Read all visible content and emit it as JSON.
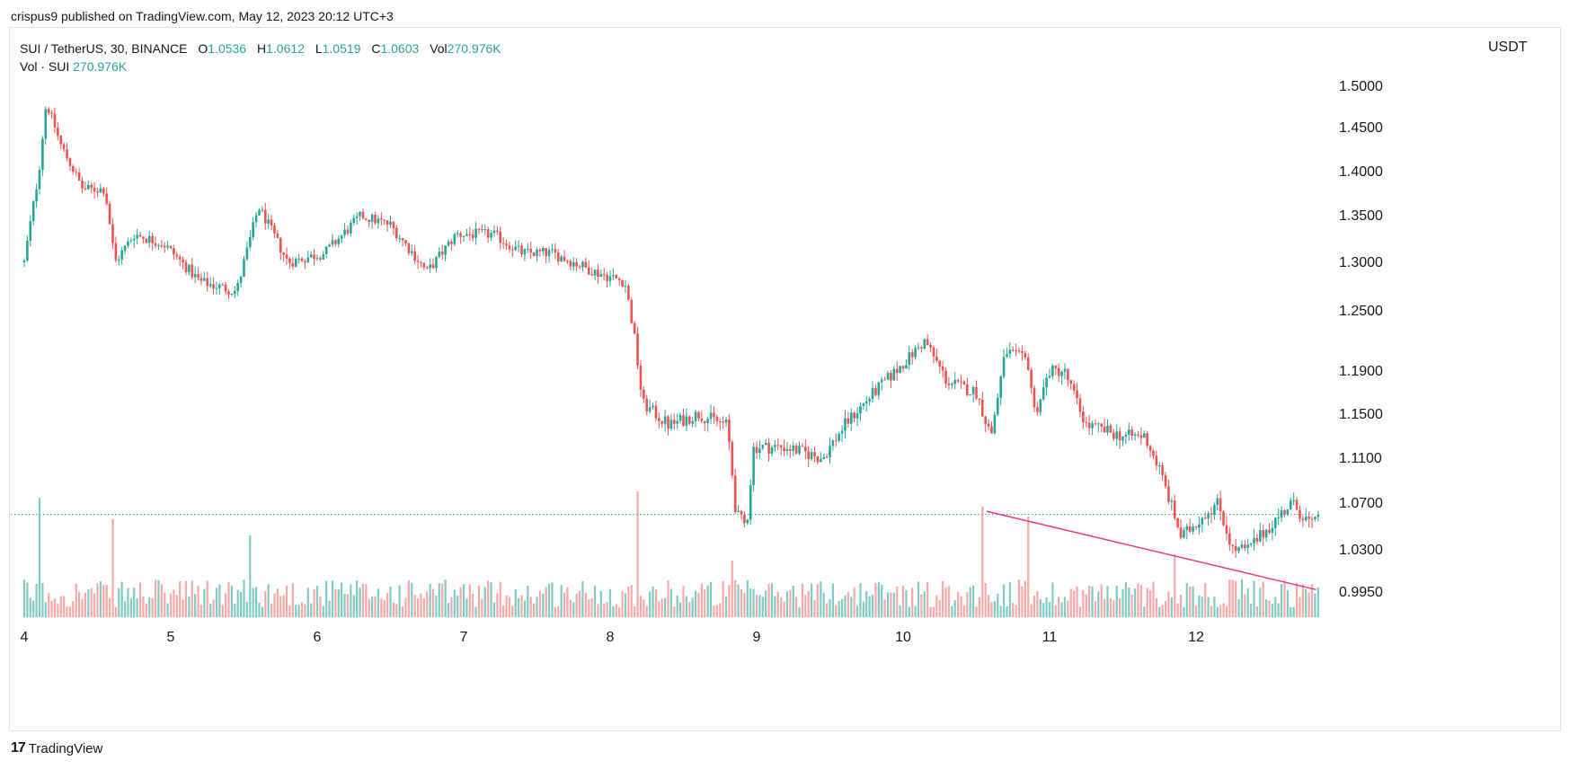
{
  "caption": "crispus9 published on TradingView.com, May 12, 2023 20:12 UTC+3",
  "legend": {
    "symbol": "SUI / TetherUS, 30, BINANCE",
    "open_key": "O",
    "open": "1.0536",
    "high_key": "H",
    "high": "1.0612",
    "low_key": "L",
    "low": "1.0519",
    "close_key": "C",
    "close": "1.0603",
    "vol_key": "Vol",
    "vol": "270.976K",
    "vol_line_label": "Vol · SUI",
    "vol_line_value": "270.976K"
  },
  "currency": "USDT",
  "brand": {
    "logo": "17",
    "name": "TradingView"
  },
  "colors": {
    "up": "#26a69a",
    "down": "#ef5350",
    "vol_up": "#80cbc4",
    "vol_down": "#f7a9a7",
    "trendline": "#f0387f",
    "price_line": "#26a69a"
  },
  "chart_data": {
    "type": "candlestick",
    "y_ticks": [
      1.5,
      1.45,
      1.4,
      1.35,
      1.3,
      1.25,
      1.19,
      1.15,
      1.11,
      1.07,
      1.03,
      0.995
    ],
    "y_tick_labels": [
      "1.5000",
      "1.4500",
      "1.4000",
      "1.3500",
      "1.3000",
      "1.2500",
      "1.1900",
      "1.1500",
      "1.1100",
      "1.0700",
      "1.0300",
      "0.9950"
    ],
    "x_ticks": [
      "4",
      "5",
      "6",
      "7",
      "8",
      "9",
      "10",
      "11",
      "12"
    ],
    "x_start_day": 4,
    "x_end_day": 12.85,
    "last_price": 1.0603,
    "waypoints": [
      [
        4.0,
        1.3
      ],
      [
        4.1,
        1.4
      ],
      [
        4.15,
        1.48
      ],
      [
        4.25,
        1.43
      ],
      [
        4.4,
        1.38
      ],
      [
        4.55,
        1.38
      ],
      [
        4.62,
        1.3
      ],
      [
        4.75,
        1.33
      ],
      [
        4.95,
        1.32
      ],
      [
        5.2,
        1.28
      ],
      [
        5.45,
        1.27
      ],
      [
        5.6,
        1.36
      ],
      [
        5.8,
        1.3
      ],
      [
        6.05,
        1.31
      ],
      [
        6.3,
        1.35
      ],
      [
        6.5,
        1.34
      ],
      [
        6.75,
        1.29
      ],
      [
        6.95,
        1.33
      ],
      [
        7.2,
        1.33
      ],
      [
        7.4,
        1.31
      ],
      [
        7.6,
        1.31
      ],
      [
        7.9,
        1.29
      ],
      [
        8.1,
        1.28
      ],
      [
        8.16,
        1.23
      ],
      [
        8.22,
        1.16
      ],
      [
        8.4,
        1.14
      ],
      [
        8.6,
        1.15
      ],
      [
        8.8,
        1.14
      ],
      [
        8.86,
        1.06
      ],
      [
        8.93,
        1.05
      ],
      [
        8.98,
        1.12
      ],
      [
        9.2,
        1.12
      ],
      [
        9.45,
        1.11
      ],
      [
        9.6,
        1.14
      ],
      [
        9.8,
        1.17
      ],
      [
        9.95,
        1.19
      ],
      [
        10.15,
        1.22
      ],
      [
        10.3,
        1.18
      ],
      [
        10.5,
        1.17
      ],
      [
        10.6,
        1.13
      ],
      [
        10.7,
        1.21
      ],
      [
        10.85,
        1.2
      ],
      [
        10.9,
        1.15
      ],
      [
        11.0,
        1.19
      ],
      [
        11.1,
        1.19
      ],
      [
        11.25,
        1.14
      ],
      [
        11.5,
        1.13
      ],
      [
        11.65,
        1.13
      ],
      [
        11.75,
        1.1
      ],
      [
        11.9,
        1.04
      ],
      [
        12.05,
        1.06
      ],
      [
        12.15,
        1.07
      ],
      [
        12.25,
        1.03
      ],
      [
        12.35,
        1.03
      ],
      [
        12.5,
        1.05
      ],
      [
        12.65,
        1.07
      ],
      [
        12.8,
        1.05
      ],
      [
        12.85,
        1.0603
      ]
    ],
    "volume_spikes": [
      [
        4.1,
        0.95
      ],
      [
        4.6,
        0.78
      ],
      [
        5.55,
        0.65
      ],
      [
        8.18,
        1.0
      ],
      [
        8.83,
        0.45
      ],
      [
        10.55,
        0.88
      ],
      [
        10.85,
        0.8
      ],
      [
        11.85,
        0.5
      ],
      [
        12.22,
        0.3
      ]
    ],
    "trendline": {
      "from": [
        10.57,
        1.063
      ],
      "to": [
        12.82,
        0.997
      ]
    }
  }
}
